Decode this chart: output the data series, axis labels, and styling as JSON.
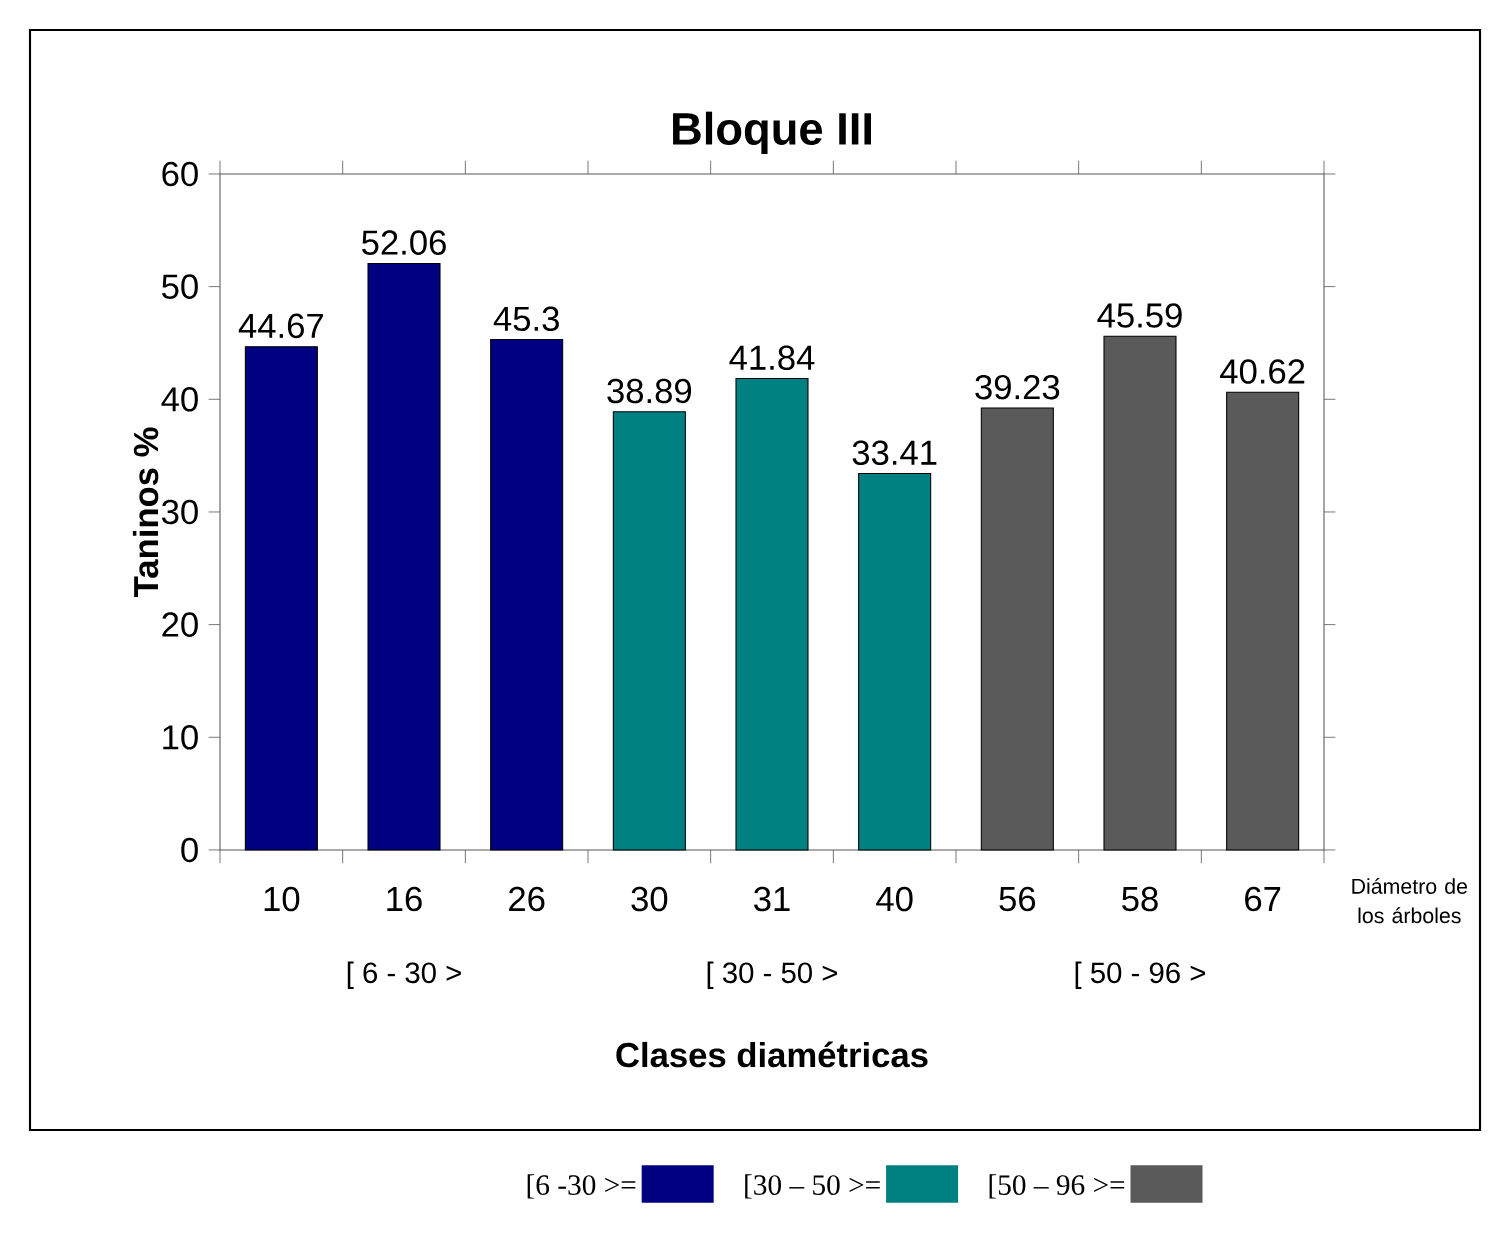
{
  "chart_data": {
    "type": "bar",
    "title": "Bloque III",
    "xlabel": "Clases diamétricas",
    "ylabel": "Taninos %",
    "categories": [
      "10",
      "16",
      "26",
      "30",
      "31",
      "40",
      "56",
      "58",
      "67"
    ],
    "series": [
      {
        "name": "[6 -30 >=",
        "color": "#000080",
        "values": [
          44.67,
          52.06,
          45.3,
          null,
          null,
          null,
          null,
          null,
          null
        ]
      },
      {
        "name": "[30 – 50 >=",
        "color": "#008080",
        "values": [
          null,
          null,
          null,
          38.89,
          41.84,
          33.41,
          null,
          null,
          null
        ]
      },
      {
        "name": "[50 – 96 >=",
        "color": "#5a5a5a",
        "values": [
          null,
          null,
          null,
          null,
          null,
          null,
          39.23,
          45.59,
          40.62
        ]
      }
    ],
    "ylim": [
      0,
      60
    ],
    "yticks": [
      0,
      10,
      20,
      30,
      40,
      50,
      60
    ],
    "data_labels": true,
    "legend": "bottom",
    "grid": false,
    "annotations": [
      "[ 6 - 30 >",
      "[ 30 - 50 >",
      "[ 50 - 96 >",
      "Diámetro de los árboles"
    ]
  }
}
